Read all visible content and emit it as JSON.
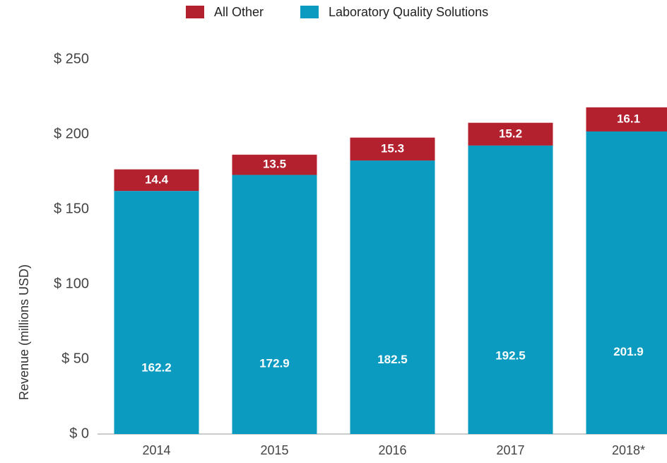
{
  "chart_data": {
    "type": "stacked_bar",
    "y_label": "Revenue (millions USD)",
    "categories": [
      "2014",
      "2015",
      "2016",
      "2017",
      "2018*"
    ],
    "series": [
      {
        "name": "All Other",
        "color": "#b3202e",
        "values": [
          14.4,
          13.5,
          15.3,
          15.2,
          16.1
        ]
      },
      {
        "name": "Laboratory Quality Solutions",
        "color": "#0b9bc0",
        "values": [
          162.2,
          172.9,
          182.5,
          192.5,
          201.9
        ]
      }
    ],
    "ylim": [
      0,
      250
    ],
    "yticks": [
      {
        "value": 0,
        "label": "$ 0"
      },
      {
        "value": 50,
        "label": "$ 50"
      },
      {
        "value": 100,
        "label": "$ 100"
      },
      {
        "value": 150,
        "label": "$ 150"
      },
      {
        "value": 200,
        "label": "$ 200"
      },
      {
        "value": 250,
        "label": "$ 250"
      }
    ],
    "grid": false
  }
}
